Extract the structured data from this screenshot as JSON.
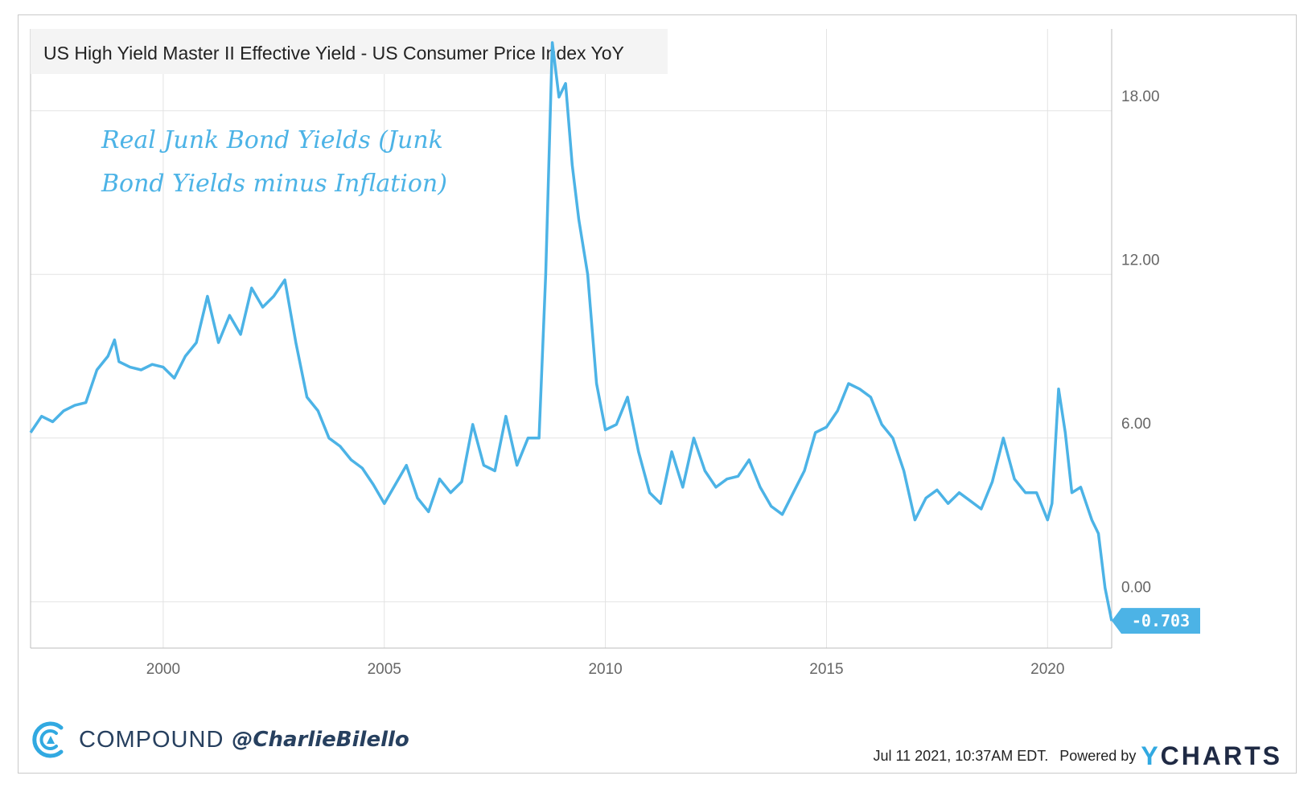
{
  "chart_data": {
    "type": "line",
    "title": "US High Yield Master II Effective Yield - US Consumer Price Index YoY",
    "annotation_lines": [
      "Real Junk Bond Yields (Junk",
      "Bond Yields minus Inflation)"
    ],
    "x_ticks": [
      2000,
      2005,
      2010,
      2015,
      2020
    ],
    "y_ticks": [
      0,
      6,
      12,
      18
    ],
    "y_tick_labels": [
      "0.00",
      "6.00",
      "12.00",
      "18.00"
    ],
    "xlim": [
      1997.0,
      2021.45
    ],
    "ylim": [
      -1.7,
      21.0
    ],
    "grid": true,
    "last_value": -0.703,
    "last_value_label": "-0.703",
    "line_color": "#4cb3e6",
    "series": [
      {
        "x": [
          1997.0,
          1997.25,
          1997.5,
          1997.75,
          1998.0,
          1998.25,
          1998.5,
          1998.75,
          1998.9,
          1999.0,
          1999.25,
          1999.5,
          1999.75,
          2000.0,
          2000.25,
          2000.5,
          2000.75,
          2001.0,
          2001.25,
          2001.5,
          2001.75,
          2002.0,
          2002.25,
          2002.5,
          2002.75,
          2003.0,
          2003.25,
          2003.5,
          2003.75,
          2004.0,
          2004.25,
          2004.5,
          2004.75,
          2005.0,
          2005.25,
          2005.5,
          2005.75,
          2006.0,
          2006.25,
          2006.5,
          2006.75,
          2007.0,
          2007.25,
          2007.5,
          2007.75,
          2008.0,
          2008.25,
          2008.5,
          2008.65,
          2008.8,
          2008.95,
          2009.1,
          2009.25,
          2009.4,
          2009.6,
          2009.8,
          2010.0,
          2010.25,
          2010.5,
          2010.75,
          2011.0,
          2011.25,
          2011.5,
          2011.75,
          2012.0,
          2012.25,
          2012.5,
          2012.75,
          2013.0,
          2013.25,
          2013.5,
          2013.75,
          2014.0,
          2014.25,
          2014.5,
          2014.75,
          2015.0,
          2015.25,
          2015.5,
          2015.75,
          2016.0,
          2016.25,
          2016.5,
          2016.75,
          2017.0,
          2017.25,
          2017.5,
          2017.75,
          2018.0,
          2018.25,
          2018.5,
          2018.75,
          2019.0,
          2019.25,
          2019.5,
          2019.75,
          2020.0,
          2020.1,
          2020.25,
          2020.4,
          2020.55,
          2020.75,
          2021.0,
          2021.15,
          2021.3,
          2021.45
        ],
        "y": [
          6.2,
          6.8,
          6.6,
          7.0,
          7.2,
          7.3,
          8.5,
          9.0,
          9.6,
          8.8,
          8.6,
          8.5,
          8.7,
          8.6,
          8.2,
          9.0,
          9.5,
          11.2,
          9.5,
          10.5,
          9.8,
          11.5,
          10.8,
          11.2,
          11.8,
          9.5,
          7.5,
          7.0,
          6.0,
          5.7,
          5.2,
          4.9,
          4.3,
          3.6,
          4.3,
          5.0,
          3.8,
          3.3,
          4.5,
          4.0,
          4.4,
          6.5,
          5.0,
          4.8,
          6.8,
          5.0,
          6.0,
          6.0,
          12.0,
          20.5,
          18.5,
          19.0,
          16.0,
          14.0,
          12.0,
          8.0,
          6.3,
          6.5,
          7.5,
          5.5,
          4.0,
          3.6,
          5.5,
          4.2,
          6.0,
          4.8,
          4.2,
          4.5,
          4.6,
          5.2,
          4.2,
          3.5,
          3.2,
          4.0,
          4.8,
          6.2,
          6.4,
          7.0,
          8.0,
          7.8,
          7.5,
          6.5,
          6.0,
          4.8,
          3.0,
          3.8,
          4.1,
          3.6,
          4.0,
          3.7,
          3.4,
          4.4,
          6.0,
          4.5,
          4.0,
          4.0,
          3.0,
          3.6,
          7.8,
          6.2,
          4.0,
          4.2,
          3.0,
          2.5,
          0.5,
          -0.703
        ]
      }
    ]
  },
  "branding": {
    "company": "COMPOUND",
    "handle": "@CharlieBilello",
    "timestamp": "Jul 11 2021, 10:37AM EDT.",
    "powered_by": "Powered by",
    "ycharts_y": "Y",
    "ycharts_rest": "CHARTS"
  },
  "colors": {
    "line": "#4cb3e6",
    "grid": "#e3e3e3",
    "title_bg": "#f4f4f4",
    "brand_blue": "#31a9e1",
    "brand_navy": "#27405f"
  }
}
